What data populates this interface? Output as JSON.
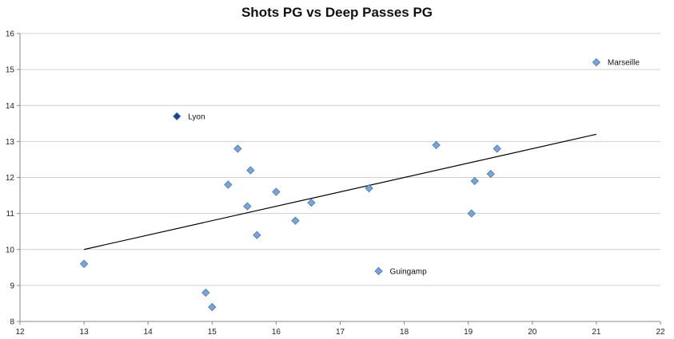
{
  "chart_data": {
    "type": "scatter",
    "title": "Shots PG vs Deep Passes PG",
    "xlabel": "",
    "ylabel": "",
    "xlim": [
      12,
      22
    ],
    "ylim": [
      8,
      16
    ],
    "x_ticks": [
      12,
      13,
      14,
      15,
      16,
      17,
      18,
      19,
      20,
      21,
      22
    ],
    "y_ticks": [
      8,
      9,
      10,
      11,
      12,
      13,
      14,
      15,
      16
    ],
    "grid": "horizontal",
    "legend": "none",
    "marker_color": "#7aa3d6",
    "marker_edge_color": "#4a78b5",
    "highlight_color": "#1f3e8c",
    "points": [
      {
        "x": 21.0,
        "y": 15.2,
        "label": "Marseille"
      },
      {
        "x": 14.45,
        "y": 13.7,
        "label": "Lyon",
        "highlight": true
      },
      {
        "x": 17.6,
        "y": 9.4,
        "label": "Guingamp"
      },
      {
        "x": 13.0,
        "y": 9.6
      },
      {
        "x": 14.9,
        "y": 8.8
      },
      {
        "x": 15.0,
        "y": 8.4
      },
      {
        "x": 15.25,
        "y": 11.8
      },
      {
        "x": 15.4,
        "y": 12.8
      },
      {
        "x": 15.55,
        "y": 11.2
      },
      {
        "x": 15.6,
        "y": 12.2
      },
      {
        "x": 15.7,
        "y": 10.4
      },
      {
        "x": 16.0,
        "y": 11.6
      },
      {
        "x": 16.3,
        "y": 10.8
      },
      {
        "x": 16.55,
        "y": 11.3
      },
      {
        "x": 17.45,
        "y": 11.7
      },
      {
        "x": 18.5,
        "y": 12.9
      },
      {
        "x": 19.05,
        "y": 11.0
      },
      {
        "x": 19.1,
        "y": 11.9
      },
      {
        "x": 19.35,
        "y": 12.1
      },
      {
        "x": 19.45,
        "y": 12.8
      }
    ],
    "trendline": {
      "x": [
        13.0,
        21.0
      ],
      "y": [
        10.0,
        13.2
      ]
    }
  }
}
